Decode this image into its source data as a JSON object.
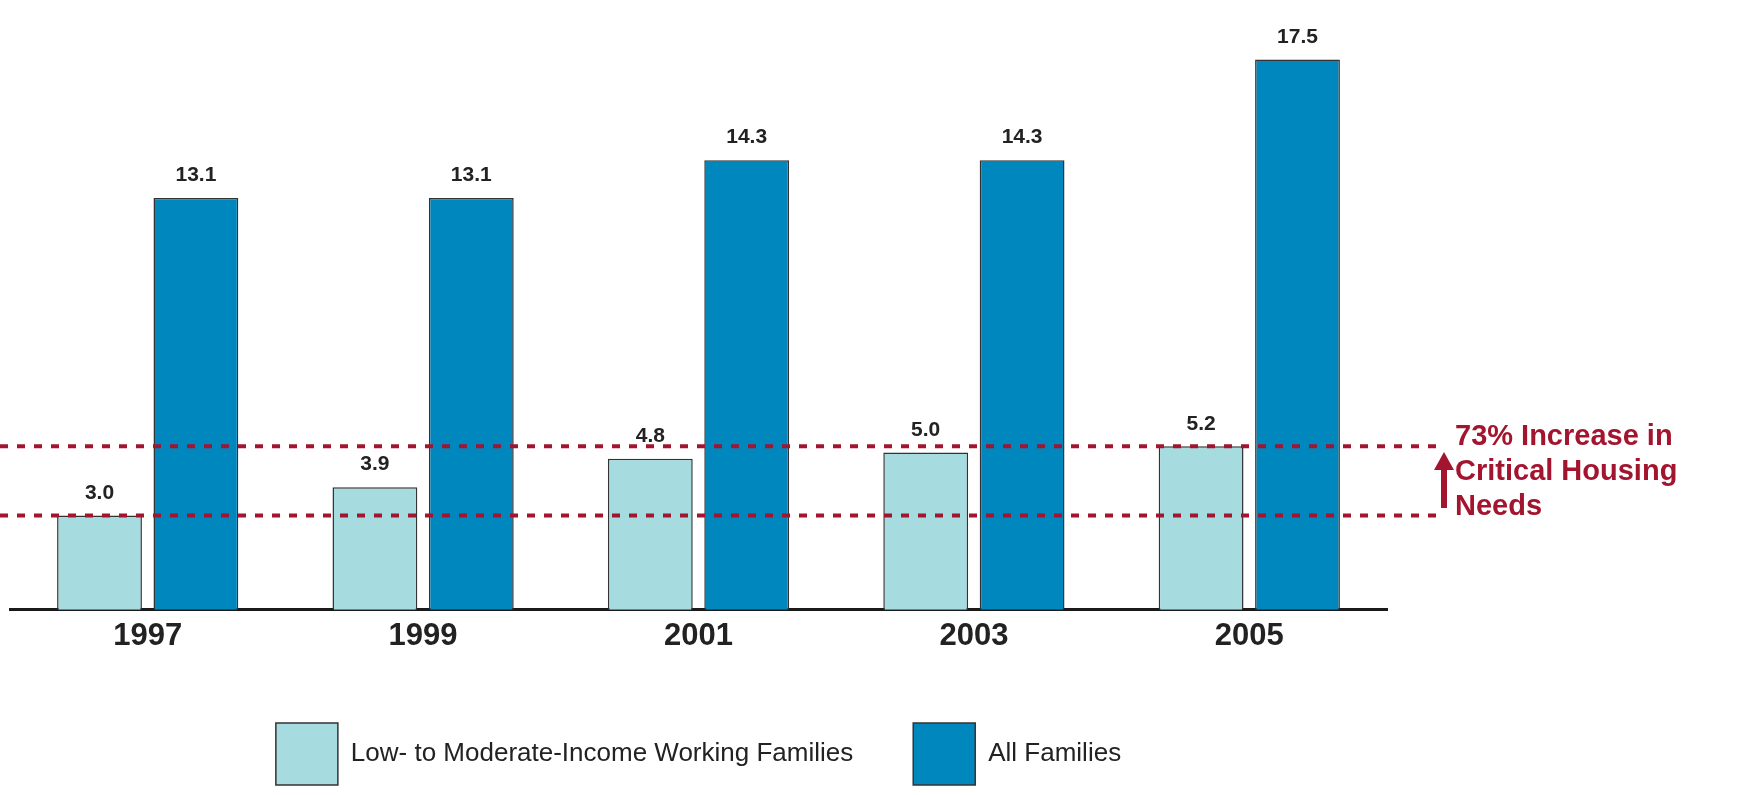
{
  "chart_data": {
    "type": "bar",
    "categories": [
      "1997",
      "1999",
      "2001",
      "2003",
      "2005"
    ],
    "series": [
      {
        "name": "Low- to Moderate-Income Working Families",
        "color": "#a6dce0",
        "values": [
          3.0,
          3.9,
          4.8,
          5.0,
          5.2
        ],
        "value_labels": [
          "3.0",
          "3.9",
          "4.8",
          "5.0",
          "5.2"
        ]
      },
      {
        "name": "All Families",
        "color": "#0087bd",
        "values": [
          13.1,
          13.1,
          14.3,
          14.3,
          17.5
        ],
        "value_labels": [
          "13.1",
          "13.1",
          "14.3",
          "14.3",
          "17.5"
        ]
      }
    ],
    "grid": false,
    "legend": "bottom",
    "ref_lines": [
      {
        "axis": "y",
        "value": 3.0,
        "color": "#a3152f",
        "line_style": "dashed"
      },
      {
        "axis": "y",
        "value": 5.2,
        "color": "#a3152f",
        "line_style": "dashed"
      }
    ],
    "annotations": [
      "73% Increase in Critical Housing Needs"
    ]
  }
}
